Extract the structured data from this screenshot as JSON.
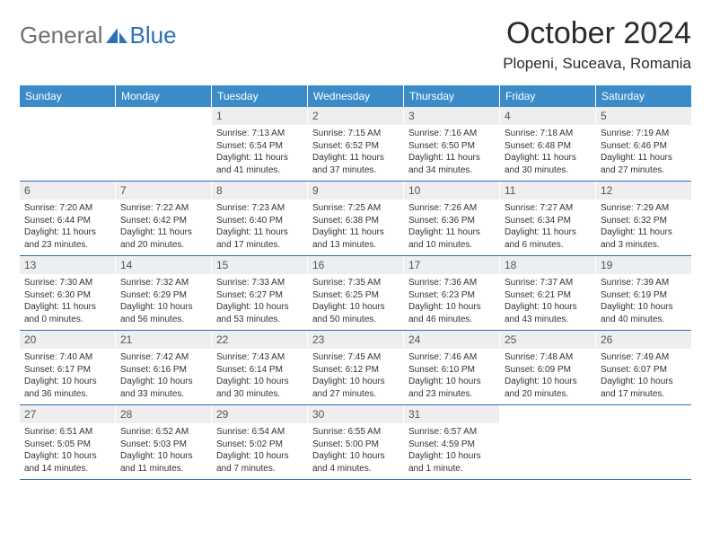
{
  "brand": {
    "part1": "General",
    "part2": "Blue"
  },
  "title": "October 2024",
  "location": "Plopeni, Suceava, Romania",
  "colors": {
    "header_bg": "#3b8bc9",
    "accent": "#2a72b5",
    "daynum_bg": "#eceeef",
    "text": "#333333",
    "logo_gray": "#6f6f6f"
  },
  "day_headers": [
    "Sunday",
    "Monday",
    "Tuesday",
    "Wednesday",
    "Thursday",
    "Friday",
    "Saturday"
  ],
  "weeks": [
    [
      {
        "n": "",
        "sunrise": "",
        "sunset": "",
        "daylight": ""
      },
      {
        "n": "",
        "sunrise": "",
        "sunset": "",
        "daylight": ""
      },
      {
        "n": "1",
        "sunrise": "Sunrise: 7:13 AM",
        "sunset": "Sunset: 6:54 PM",
        "daylight": "Daylight: 11 hours and 41 minutes."
      },
      {
        "n": "2",
        "sunrise": "Sunrise: 7:15 AM",
        "sunset": "Sunset: 6:52 PM",
        "daylight": "Daylight: 11 hours and 37 minutes."
      },
      {
        "n": "3",
        "sunrise": "Sunrise: 7:16 AM",
        "sunset": "Sunset: 6:50 PM",
        "daylight": "Daylight: 11 hours and 34 minutes."
      },
      {
        "n": "4",
        "sunrise": "Sunrise: 7:18 AM",
        "sunset": "Sunset: 6:48 PM",
        "daylight": "Daylight: 11 hours and 30 minutes."
      },
      {
        "n": "5",
        "sunrise": "Sunrise: 7:19 AM",
        "sunset": "Sunset: 6:46 PM",
        "daylight": "Daylight: 11 hours and 27 minutes."
      }
    ],
    [
      {
        "n": "6",
        "sunrise": "Sunrise: 7:20 AM",
        "sunset": "Sunset: 6:44 PM",
        "daylight": "Daylight: 11 hours and 23 minutes."
      },
      {
        "n": "7",
        "sunrise": "Sunrise: 7:22 AM",
        "sunset": "Sunset: 6:42 PM",
        "daylight": "Daylight: 11 hours and 20 minutes."
      },
      {
        "n": "8",
        "sunrise": "Sunrise: 7:23 AM",
        "sunset": "Sunset: 6:40 PM",
        "daylight": "Daylight: 11 hours and 17 minutes."
      },
      {
        "n": "9",
        "sunrise": "Sunrise: 7:25 AM",
        "sunset": "Sunset: 6:38 PM",
        "daylight": "Daylight: 11 hours and 13 minutes."
      },
      {
        "n": "10",
        "sunrise": "Sunrise: 7:26 AM",
        "sunset": "Sunset: 6:36 PM",
        "daylight": "Daylight: 11 hours and 10 minutes."
      },
      {
        "n": "11",
        "sunrise": "Sunrise: 7:27 AM",
        "sunset": "Sunset: 6:34 PM",
        "daylight": "Daylight: 11 hours and 6 minutes."
      },
      {
        "n": "12",
        "sunrise": "Sunrise: 7:29 AM",
        "sunset": "Sunset: 6:32 PM",
        "daylight": "Daylight: 11 hours and 3 minutes."
      }
    ],
    [
      {
        "n": "13",
        "sunrise": "Sunrise: 7:30 AM",
        "sunset": "Sunset: 6:30 PM",
        "daylight": "Daylight: 11 hours and 0 minutes."
      },
      {
        "n": "14",
        "sunrise": "Sunrise: 7:32 AM",
        "sunset": "Sunset: 6:29 PM",
        "daylight": "Daylight: 10 hours and 56 minutes."
      },
      {
        "n": "15",
        "sunrise": "Sunrise: 7:33 AM",
        "sunset": "Sunset: 6:27 PM",
        "daylight": "Daylight: 10 hours and 53 minutes."
      },
      {
        "n": "16",
        "sunrise": "Sunrise: 7:35 AM",
        "sunset": "Sunset: 6:25 PM",
        "daylight": "Daylight: 10 hours and 50 minutes."
      },
      {
        "n": "17",
        "sunrise": "Sunrise: 7:36 AM",
        "sunset": "Sunset: 6:23 PM",
        "daylight": "Daylight: 10 hours and 46 minutes."
      },
      {
        "n": "18",
        "sunrise": "Sunrise: 7:37 AM",
        "sunset": "Sunset: 6:21 PM",
        "daylight": "Daylight: 10 hours and 43 minutes."
      },
      {
        "n": "19",
        "sunrise": "Sunrise: 7:39 AM",
        "sunset": "Sunset: 6:19 PM",
        "daylight": "Daylight: 10 hours and 40 minutes."
      }
    ],
    [
      {
        "n": "20",
        "sunrise": "Sunrise: 7:40 AM",
        "sunset": "Sunset: 6:17 PM",
        "daylight": "Daylight: 10 hours and 36 minutes."
      },
      {
        "n": "21",
        "sunrise": "Sunrise: 7:42 AM",
        "sunset": "Sunset: 6:16 PM",
        "daylight": "Daylight: 10 hours and 33 minutes."
      },
      {
        "n": "22",
        "sunrise": "Sunrise: 7:43 AM",
        "sunset": "Sunset: 6:14 PM",
        "daylight": "Daylight: 10 hours and 30 minutes."
      },
      {
        "n": "23",
        "sunrise": "Sunrise: 7:45 AM",
        "sunset": "Sunset: 6:12 PM",
        "daylight": "Daylight: 10 hours and 27 minutes."
      },
      {
        "n": "24",
        "sunrise": "Sunrise: 7:46 AM",
        "sunset": "Sunset: 6:10 PM",
        "daylight": "Daylight: 10 hours and 23 minutes."
      },
      {
        "n": "25",
        "sunrise": "Sunrise: 7:48 AM",
        "sunset": "Sunset: 6:09 PM",
        "daylight": "Daylight: 10 hours and 20 minutes."
      },
      {
        "n": "26",
        "sunrise": "Sunrise: 7:49 AM",
        "sunset": "Sunset: 6:07 PM",
        "daylight": "Daylight: 10 hours and 17 minutes."
      }
    ],
    [
      {
        "n": "27",
        "sunrise": "Sunrise: 6:51 AM",
        "sunset": "Sunset: 5:05 PM",
        "daylight": "Daylight: 10 hours and 14 minutes."
      },
      {
        "n": "28",
        "sunrise": "Sunrise: 6:52 AM",
        "sunset": "Sunset: 5:03 PM",
        "daylight": "Daylight: 10 hours and 11 minutes."
      },
      {
        "n": "29",
        "sunrise": "Sunrise: 6:54 AM",
        "sunset": "Sunset: 5:02 PM",
        "daylight": "Daylight: 10 hours and 7 minutes."
      },
      {
        "n": "30",
        "sunrise": "Sunrise: 6:55 AM",
        "sunset": "Sunset: 5:00 PM",
        "daylight": "Daylight: 10 hours and 4 minutes."
      },
      {
        "n": "31",
        "sunrise": "Sunrise: 6:57 AM",
        "sunset": "Sunset: 4:59 PM",
        "daylight": "Daylight: 10 hours and 1 minute."
      },
      {
        "n": "",
        "sunrise": "",
        "sunset": "",
        "daylight": ""
      },
      {
        "n": "",
        "sunrise": "",
        "sunset": "",
        "daylight": ""
      }
    ]
  ]
}
